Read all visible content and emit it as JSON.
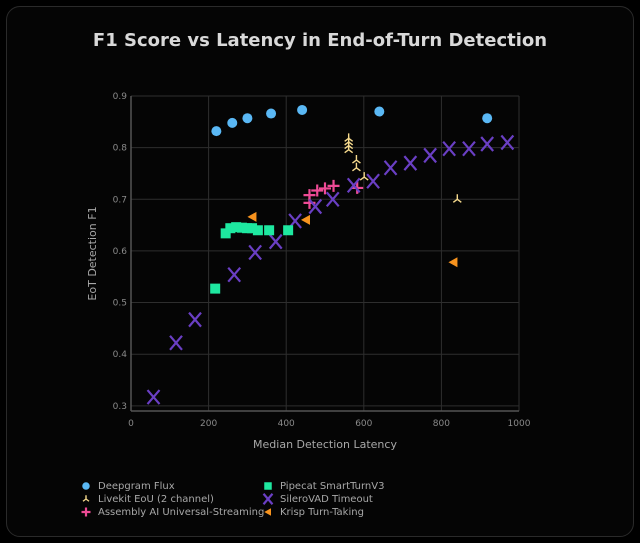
{
  "chart_data": {
    "type": "scatter",
    "title": "F1 Score vs Latency in End-of-Turn Detection",
    "xlabel": "Median Detection Latency",
    "ylabel": "EoT Detection F1",
    "xlim": [
      0,
      1000
    ],
    "ylim": [
      0.29,
      0.9
    ],
    "xticks": [
      0,
      200,
      400,
      600,
      800,
      1000
    ],
    "yticks": [
      0.3,
      0.4,
      0.5,
      0.6,
      0.7,
      0.8,
      0.9
    ],
    "xtick_labels": [
      "0",
      "200",
      "400",
      "600",
      "800",
      "1000"
    ],
    "ytick_labels": [
      "0.3",
      "0.4",
      "0.5",
      "0.6",
      "0.7",
      "0.8",
      "0.9"
    ],
    "grid": true,
    "legend_placement": "bottom",
    "series": [
      {
        "name": "Deepgram Flux",
        "marker": "circle",
        "color": "#5ab8f5",
        "points": [
          [
            220,
            0.832
          ],
          [
            261,
            0.848
          ],
          [
            300,
            0.857
          ],
          [
            361,
            0.866
          ],
          [
            441,
            0.873
          ],
          [
            640,
            0.87
          ],
          [
            918,
            0.857
          ]
        ]
      },
      {
        "name": "Assembly AI Universal-Streaming",
        "marker": "plus",
        "color": "#ee4b95",
        "points": [
          [
            460,
            0.708
          ],
          [
            460,
            0.693
          ],
          [
            480,
            0.717
          ],
          [
            500,
            0.721
          ],
          [
            522,
            0.726
          ],
          [
            583,
            0.722
          ]
        ]
      },
      {
        "name": "SileroVAD Timeout",
        "marker": "x",
        "color": "#6a3fc4",
        "points": [
          [
            58,
            0.317
          ],
          [
            116,
            0.422
          ],
          [
            165,
            0.467
          ],
          [
            266,
            0.554
          ],
          [
            320,
            0.597
          ],
          [
            373,
            0.618
          ],
          [
            423,
            0.658
          ],
          [
            475,
            0.686
          ],
          [
            520,
            0.7
          ],
          [
            574,
            0.727
          ],
          [
            624,
            0.735
          ],
          [
            669,
            0.761
          ],
          [
            720,
            0.77
          ],
          [
            771,
            0.785
          ],
          [
            820,
            0.798
          ],
          [
            871,
            0.798
          ],
          [
            918,
            0.807
          ],
          [
            970,
            0.81
          ]
        ]
      },
      {
        "name": "Livekit EoU (2 channel)",
        "marker": "tri",
        "color": "#f5d98c",
        "points": [
          [
            561,
            0.818
          ],
          [
            561,
            0.811
          ],
          [
            561,
            0.804
          ],
          [
            561,
            0.796
          ],
          [
            581,
            0.776
          ],
          [
            581,
            0.761
          ],
          [
            601,
            0.743
          ],
          [
            841,
            0.7
          ]
        ]
      },
      {
        "name": "Pipecat SmartTurnV3",
        "marker": "square",
        "color": "#1ee8a0",
        "points": [
          [
            217,
            0.527
          ],
          [
            244,
            0.634
          ],
          [
            256,
            0.644
          ],
          [
            271,
            0.646
          ],
          [
            286,
            0.645
          ],
          [
            299,
            0.644
          ],
          [
            312,
            0.644
          ],
          [
            327,
            0.64
          ],
          [
            356,
            0.64
          ],
          [
            405,
            0.64
          ]
        ]
      },
      {
        "name": "Krisp Turn-Taking",
        "marker": "triangle-left",
        "color": "#f7931e",
        "points": [
          [
            313,
            0.666
          ],
          [
            451,
            0.66
          ],
          [
            831,
            0.578
          ]
        ]
      }
    ]
  }
}
